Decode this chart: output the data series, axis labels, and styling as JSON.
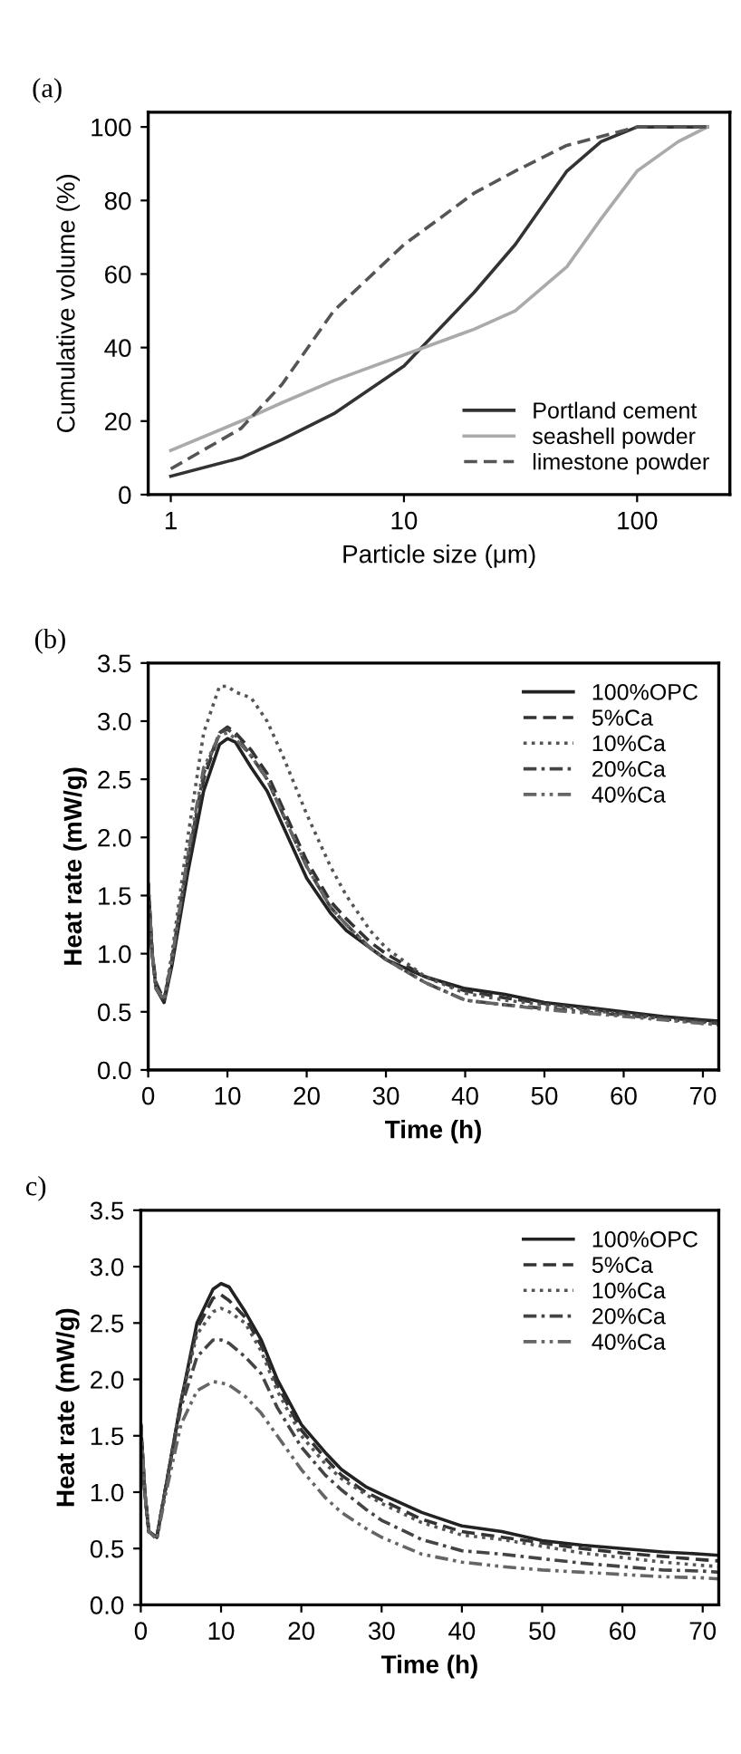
{
  "chart_data": [
    {
      "type": "line",
      "title": "(a)",
      "xlabel": "Particle size (μm)",
      "ylabel": "Cumulative volume (%)",
      "log": "x",
      "xlim": [
        0.8,
        250
      ],
      "xticks": [
        1,
        10,
        100
      ],
      "ylim": [
        0,
        104
      ],
      "yticks": [
        0,
        20,
        40,
        60,
        80,
        100
      ],
      "grid": false,
      "legend": "bottom right",
      "series": [
        {
          "name": "Portland cement",
          "color": "#333333",
          "line_style": "solid",
          "x": [
            1,
            2,
            3,
            5,
            10,
            20,
            30,
            50,
            70,
            100,
            200
          ],
          "values": [
            5,
            10,
            15,
            22,
            35,
            55,
            68,
            88,
            96,
            100,
            100
          ]
        },
        {
          "name": "seashell powder",
          "color": "#aaaaaa",
          "line_style": "solid",
          "x": [
            1,
            2,
            3,
            5,
            10,
            20,
            30,
            50,
            70,
            100,
            150,
            200
          ],
          "values": [
            12,
            20,
            25,
            31,
            38,
            45,
            50,
            62,
            75,
            88,
            96,
            100
          ]
        },
        {
          "name": "limestone powder",
          "color": "#555555",
          "line_style": "dashed",
          "x": [
            1,
            2,
            3,
            5,
            10,
            20,
            30,
            50,
            100,
            200
          ],
          "values": [
            7,
            18,
            30,
            50,
            68,
            82,
            88,
            95,
            100,
            100
          ]
        }
      ]
    },
    {
      "type": "line",
      "title": "(b)",
      "xlabel": "Time (h)",
      "ylabel": "Heat rate (mW/g)",
      "xlim": [
        0,
        72
      ],
      "xticks": [
        0,
        10,
        20,
        30,
        40,
        50,
        60,
        70
      ],
      "ylim": [
        0,
        3.5
      ],
      "yticks": [
        {
          "value": 0,
          "label": "0.0"
        },
        0.5,
        {
          "value": 1,
          "label": "1.0"
        },
        1.5,
        {
          "value": 2,
          "label": "2.0"
        },
        2.5,
        {
          "value": 3,
          "label": "3.0"
        },
        3.5
      ],
      "grid": false,
      "legend": "top right",
      "x": [
        0,
        0.5,
        1,
        2,
        3,
        5,
        7,
        9,
        10,
        11,
        13,
        15,
        17,
        20,
        23,
        25,
        28,
        30,
        35,
        40,
        45,
        50,
        55,
        60,
        65,
        70,
        72
      ],
      "series": [
        {
          "name": "100%OPC",
          "color": "#222222",
          "line_style": "solid",
          "values": [
            1.6,
            1.0,
            0.7,
            0.58,
            0.9,
            1.7,
            2.4,
            2.8,
            2.85,
            2.82,
            2.6,
            2.4,
            2.1,
            1.65,
            1.35,
            1.2,
            1.05,
            0.95,
            0.8,
            0.7,
            0.65,
            0.58,
            0.54,
            0.5,
            0.46,
            0.43,
            0.42
          ]
        },
        {
          "name": "5%Ca",
          "color": "#333333",
          "line_style": "dashed",
          "values": [
            1.6,
            1.0,
            0.75,
            0.6,
            0.95,
            1.8,
            2.5,
            2.9,
            2.95,
            2.9,
            2.75,
            2.55,
            2.25,
            1.8,
            1.45,
            1.3,
            1.1,
            1.0,
            0.8,
            0.68,
            0.62,
            0.57,
            0.53,
            0.49,
            0.45,
            0.42,
            0.41
          ]
        },
        {
          "name": "10%Ca",
          "color": "#555555",
          "line_style": "dotted",
          "values": [
            1.6,
            1.0,
            0.7,
            0.6,
            1.0,
            2.0,
            2.9,
            3.3,
            3.3,
            3.25,
            3.2,
            3.0,
            2.7,
            2.2,
            1.75,
            1.5,
            1.2,
            1.05,
            0.8,
            0.66,
            0.6,
            0.56,
            0.52,
            0.48,
            0.44,
            0.4,
            0.39
          ]
        },
        {
          "name": "20%Ca",
          "color": "#444444",
          "line_style": "dashdot",
          "values": [
            1.6,
            1.0,
            0.7,
            0.6,
            0.95,
            1.8,
            2.55,
            2.9,
            2.93,
            2.88,
            2.7,
            2.5,
            2.2,
            1.75,
            1.4,
            1.25,
            1.05,
            0.95,
            0.75,
            0.6,
            0.56,
            0.53,
            0.5,
            0.47,
            0.44,
            0.41,
            0.4
          ]
        },
        {
          "name": "40%Ca",
          "color": "#666666",
          "line_style": "dashdotdot",
          "values": [
            1.6,
            1.0,
            0.7,
            0.6,
            0.95,
            1.85,
            2.6,
            2.88,
            2.9,
            2.85,
            2.7,
            2.5,
            2.2,
            1.75,
            1.4,
            1.25,
            1.05,
            0.95,
            0.75,
            0.6,
            0.56,
            0.52,
            0.49,
            0.46,
            0.43,
            0.4,
            0.39
          ]
        }
      ]
    },
    {
      "type": "line",
      "title": "c)",
      "xlabel": "Time (h)",
      "ylabel": "Heat rate (mW/g)",
      "xlim": [
        0,
        72
      ],
      "xticks": [
        0,
        10,
        20,
        30,
        40,
        50,
        60,
        70
      ],
      "ylim": [
        0,
        3.5
      ],
      "yticks": [
        {
          "value": 0,
          "label": "0.0"
        },
        0.5,
        {
          "value": 1,
          "label": "1.0"
        },
        1.5,
        {
          "value": 2,
          "label": "2.0"
        },
        2.5,
        {
          "value": 3,
          "label": "3.0"
        },
        3.5
      ],
      "grid": false,
      "legend": "top right",
      "x": [
        0,
        0.5,
        1,
        2,
        3,
        5,
        7,
        9,
        10,
        11,
        13,
        15,
        17,
        20,
        23,
        25,
        28,
        30,
        35,
        40,
        45,
        50,
        55,
        60,
        65,
        70,
        72
      ],
      "series": [
        {
          "name": "100%OPC",
          "color": "#222222",
          "line_style": "solid",
          "values": [
            1.6,
            1.0,
            0.65,
            0.6,
            1.0,
            1.8,
            2.5,
            2.8,
            2.85,
            2.82,
            2.6,
            2.35,
            2.0,
            1.6,
            1.35,
            1.2,
            1.05,
            0.98,
            0.82,
            0.7,
            0.65,
            0.57,
            0.53,
            0.5,
            0.47,
            0.45,
            0.44
          ]
        },
        {
          "name": "5%Ca",
          "color": "#333333",
          "line_style": "dashed",
          "values": [
            1.6,
            1.0,
            0.65,
            0.6,
            1.0,
            1.8,
            2.45,
            2.72,
            2.75,
            2.7,
            2.55,
            2.3,
            1.95,
            1.55,
            1.3,
            1.15,
            1.0,
            0.93,
            0.76,
            0.65,
            0.6,
            0.55,
            0.5,
            0.46,
            0.43,
            0.4,
            0.39
          ]
        },
        {
          "name": "10%Ca",
          "color": "#555555",
          "line_style": "dotted",
          "values": [
            1.6,
            1.0,
            0.65,
            0.6,
            1.0,
            1.8,
            2.4,
            2.6,
            2.63,
            2.6,
            2.5,
            2.25,
            1.9,
            1.5,
            1.25,
            1.12,
            0.98,
            0.9,
            0.73,
            0.62,
            0.58,
            0.52,
            0.46,
            0.42,
            0.38,
            0.35,
            0.34
          ]
        },
        {
          "name": "20%Ca",
          "color": "#444444",
          "line_style": "dashdot",
          "values": [
            1.6,
            1.0,
            0.65,
            0.6,
            1.0,
            1.75,
            2.2,
            2.35,
            2.35,
            2.32,
            2.2,
            2.05,
            1.75,
            1.4,
            1.15,
            1.02,
            0.85,
            0.75,
            0.58,
            0.48,
            0.45,
            0.41,
            0.37,
            0.34,
            0.31,
            0.3,
            0.29
          ]
        },
        {
          "name": "40%Ca",
          "color": "#666666",
          "line_style": "dashdotdot",
          "values": [
            1.6,
            1.0,
            0.65,
            0.58,
            0.95,
            1.6,
            1.9,
            1.98,
            1.97,
            1.95,
            1.85,
            1.7,
            1.5,
            1.2,
            0.95,
            0.82,
            0.68,
            0.6,
            0.45,
            0.38,
            0.34,
            0.31,
            0.29,
            0.27,
            0.25,
            0.24,
            0.23
          ]
        }
      ]
    }
  ]
}
